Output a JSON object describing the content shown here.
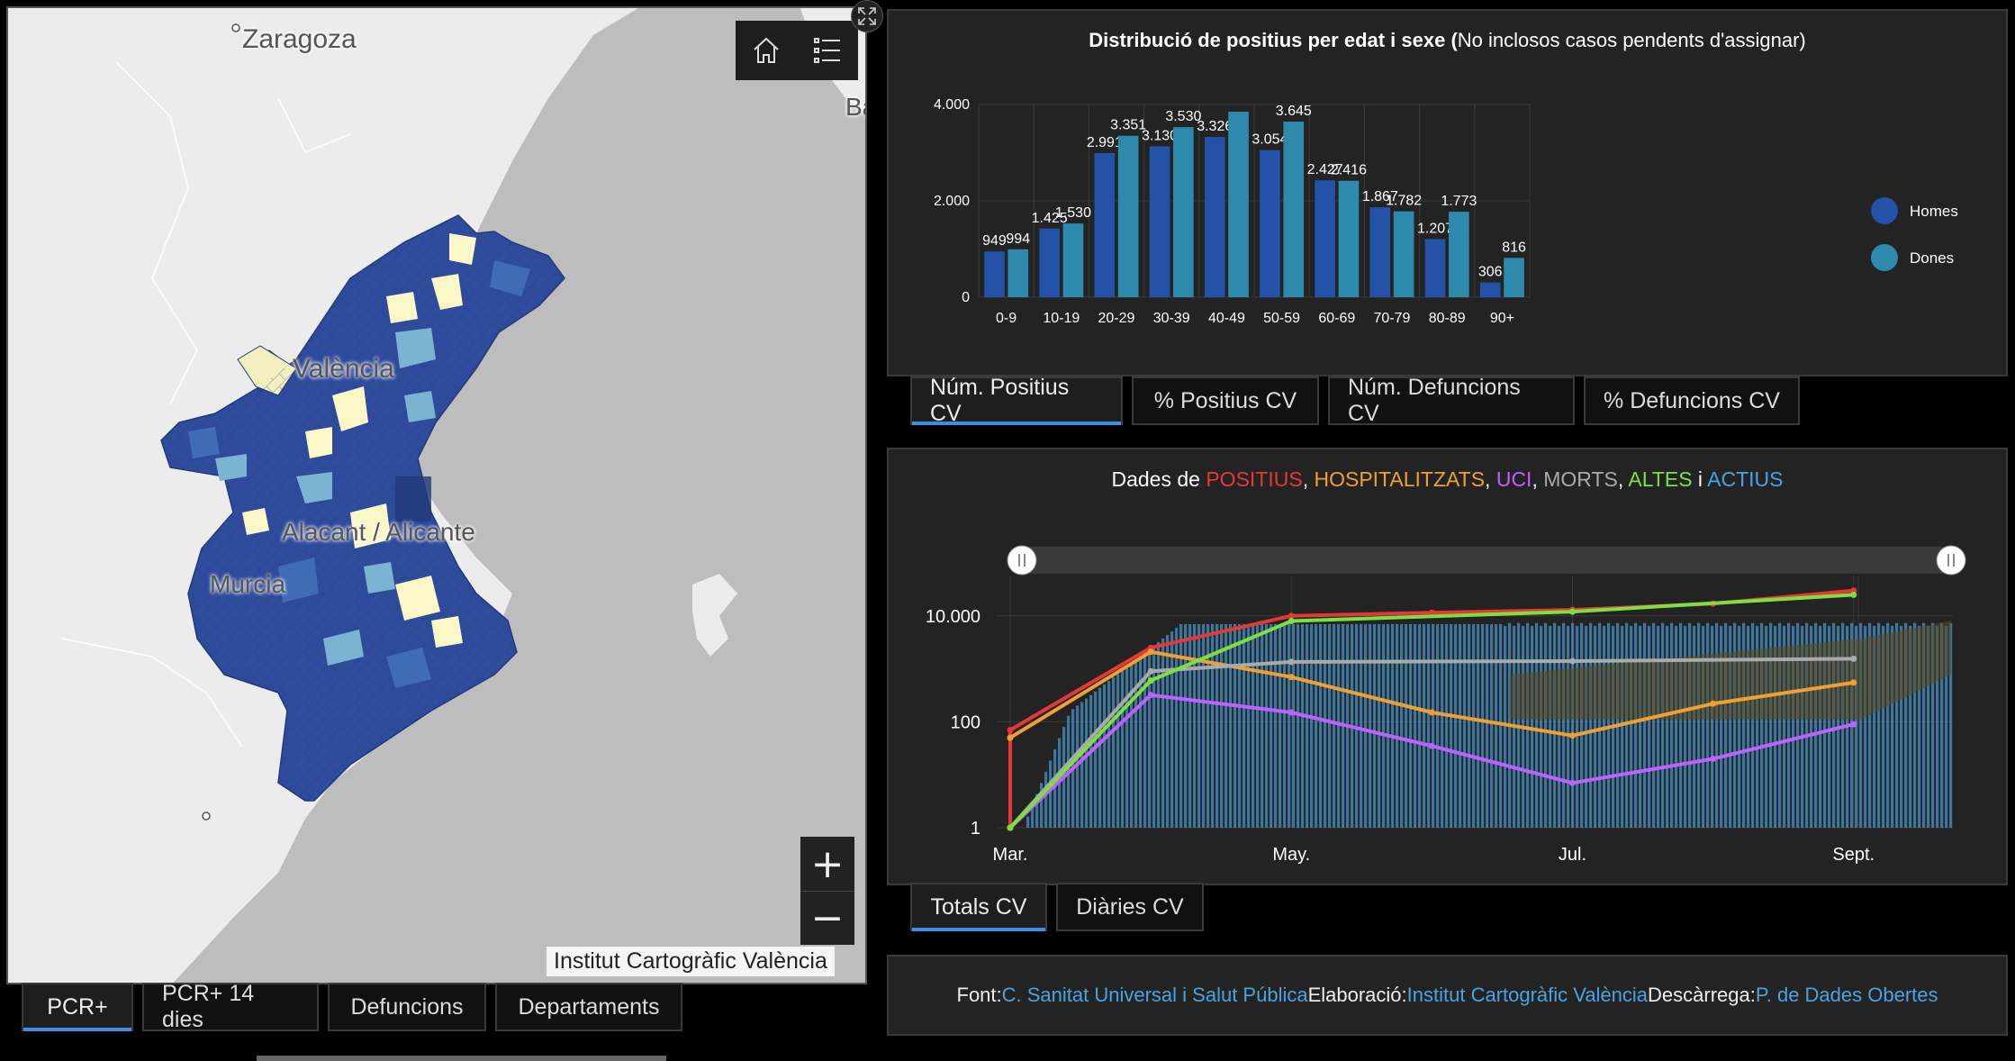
{
  "map": {
    "labels": {
      "zaragoza": "Zaragoza",
      "valencia": "València",
      "alacant": "Alacant / Alicante",
      "murcia": "Murcia",
      "ba": "Ba"
    },
    "attribution": "Institut Cartogràfic València",
    "zoom_in": "+",
    "zoom_out": "−",
    "colors": {
      "sea": "#b9b9b9",
      "land": "#ececec",
      "dark": "#2f4b9c",
      "mid": "#3f6cb3",
      "light": "#7bb3d3",
      "pale": "#fbf7c7"
    }
  },
  "map_tabs": [
    {
      "label": "PCR+",
      "active": true
    },
    {
      "label": "PCR+ 14 dies",
      "active": false
    },
    {
      "label": "Defuncions",
      "active": false
    },
    {
      "label": "Departaments",
      "active": false
    }
  ],
  "bar_chart": {
    "title_bold": "Distribució de positius per edat i sexe (",
    "title_normal": "No inclosos casos pendents d'assignar)",
    "chart_data": {
      "type": "bar",
      "categories": [
        "0-9",
        "10-19",
        "20-29",
        "30-39",
        "40-49",
        "50-59",
        "60-69",
        "70-79",
        "80-89",
        "90+"
      ],
      "series": [
        {
          "name": "Homes",
          "color": "#2352a8",
          "values": [
            949,
            1425,
            2991,
            3130,
            3326,
            3054,
            2427,
            1867,
            1207,
            306
          ],
          "labels": [
            "949",
            "1.425",
            "2.991",
            "3.130",
            "3.326",
            "3.054",
            "2.427",
            "1.867",
            "1.207",
            "306"
          ]
        },
        {
          "name": "Dones",
          "color": "#2e8aad",
          "values": [
            994,
            1530,
            3351,
            3530,
            3850,
            3645,
            2416,
            1782,
            1773,
            816
          ],
          "labels": [
            "994",
            "1.530",
            "3.351",
            "3.530",
            "",
            "3.645",
            "2.416",
            "1.782",
            "1.773",
            "816"
          ]
        }
      ],
      "yticks": [
        {
          "value": 0,
          "label": "0"
        },
        {
          "value": 2000,
          "label": "2.000"
        },
        {
          "value": 4000,
          "label": "4.000"
        }
      ],
      "ylim": [
        0,
        4000
      ],
      "legend_position": "right"
    }
  },
  "bar_tabs": [
    {
      "label": "Núm. Positius CV",
      "active": true
    },
    {
      "label": "% Positius CV",
      "active": false
    },
    {
      "label": "Núm. Defuncions CV",
      "active": false
    },
    {
      "label": "% Defuncions CV",
      "active": false
    }
  ],
  "line_chart": {
    "title_parts": [
      {
        "text": "Dades de ",
        "color": "#ffffff"
      },
      {
        "text": "POSITIUS",
        "color": "#e53935"
      },
      {
        "text": ", ",
        "color": "#ffffff"
      },
      {
        "text": "HOSPITALITZATS",
        "color": "#f0a030"
      },
      {
        "text": ", ",
        "color": "#ffffff"
      },
      {
        "text": "UCI",
        "color": "#c060ff"
      },
      {
        "text": ", ",
        "color": "#ffffff"
      },
      {
        "text": "MORTS",
        "color": "#aaaaaa"
      },
      {
        "text": ", ",
        "color": "#ffffff"
      },
      {
        "text": "ALTES",
        "color": "#7de040"
      },
      {
        "text": " i ",
        "color": "#ffffff"
      },
      {
        "text": "ACTIUS",
        "color": "#4aa3df"
      }
    ],
    "chart_data": {
      "type": "line",
      "scale": "log",
      "x_ticks": [
        "Mar.",
        "May.",
        "Jul.",
        "Sept."
      ],
      "y_ticks": [
        {
          "value": 1,
          "label": "1"
        },
        {
          "value": 100,
          "label": "100"
        },
        {
          "value": 10000,
          "label": "10.000"
        }
      ],
      "series": [
        {
          "name": "POSITIUS",
          "color": "#e53935",
          "points": [
            [
              "Mar.",
              1
            ],
            [
              "Mar.",
              70
            ],
            [
              "Abr.",
              2500
            ],
            [
              "May.",
              10000
            ],
            [
              "Jun.",
              11500
            ],
            [
              "Jul.",
              13000
            ],
            [
              "Ago.",
              17000
            ],
            [
              "Sept.",
              30000
            ]
          ]
        },
        {
          "name": "HOSPITALITZATS",
          "color": "#f0a030",
          "points": [
            [
              "Mar.",
              50
            ],
            [
              "Abr.",
              2100
            ],
            [
              "May.",
              700
            ],
            [
              "Jun.",
              150
            ],
            [
              "Jul.",
              55
            ],
            [
              "Ago.",
              220
            ],
            [
              "Sept.",
              550
            ]
          ]
        },
        {
          "name": "UCI",
          "color": "#c060ff",
          "points": [
            [
              "Mar.",
              1
            ],
            [
              "Abr.",
              320
            ],
            [
              "May.",
              150
            ],
            [
              "Jun.",
              35
            ],
            [
              "Jul.",
              7
            ],
            [
              "Ago.",
              20
            ],
            [
              "Sept.",
              90
            ]
          ]
        },
        {
          "name": "MORTS",
          "color": "#aaaaaa",
          "points": [
            [
              "Mar.",
              1
            ],
            [
              "Abr.",
              900
            ],
            [
              "May.",
              1350
            ],
            [
              "Jul.",
              1400
            ],
            [
              "Sept.",
              1550
            ]
          ]
        },
        {
          "name": "ALTES",
          "color": "#7de040",
          "points": [
            [
              "Mar.",
              1
            ],
            [
              "Abr.",
              600
            ],
            [
              "May.",
              8000
            ],
            [
              "Jul.",
              12000
            ],
            [
              "Sept.",
              25000
            ]
          ]
        },
        {
          "name": "ACTIUS",
          "color": "#4aa3df",
          "type": "bar"
        }
      ]
    }
  },
  "line_tabs": [
    {
      "label": "Totals CV",
      "active": true
    },
    {
      "label": "Diàries CV",
      "active": false
    }
  ],
  "source": {
    "font_label": "Font: ",
    "font_link": "C. Sanitat Universal i Salut Pública",
    "elab_label": " Elaboració: ",
    "elab_link": "Institut Cartogràfic València",
    "desc_label": " Descàrrega: ",
    "desc_link": "P. de Dades Obertes"
  },
  "icons": {
    "home": "home-icon",
    "list": "list-icon",
    "expand": "expand-icon"
  }
}
